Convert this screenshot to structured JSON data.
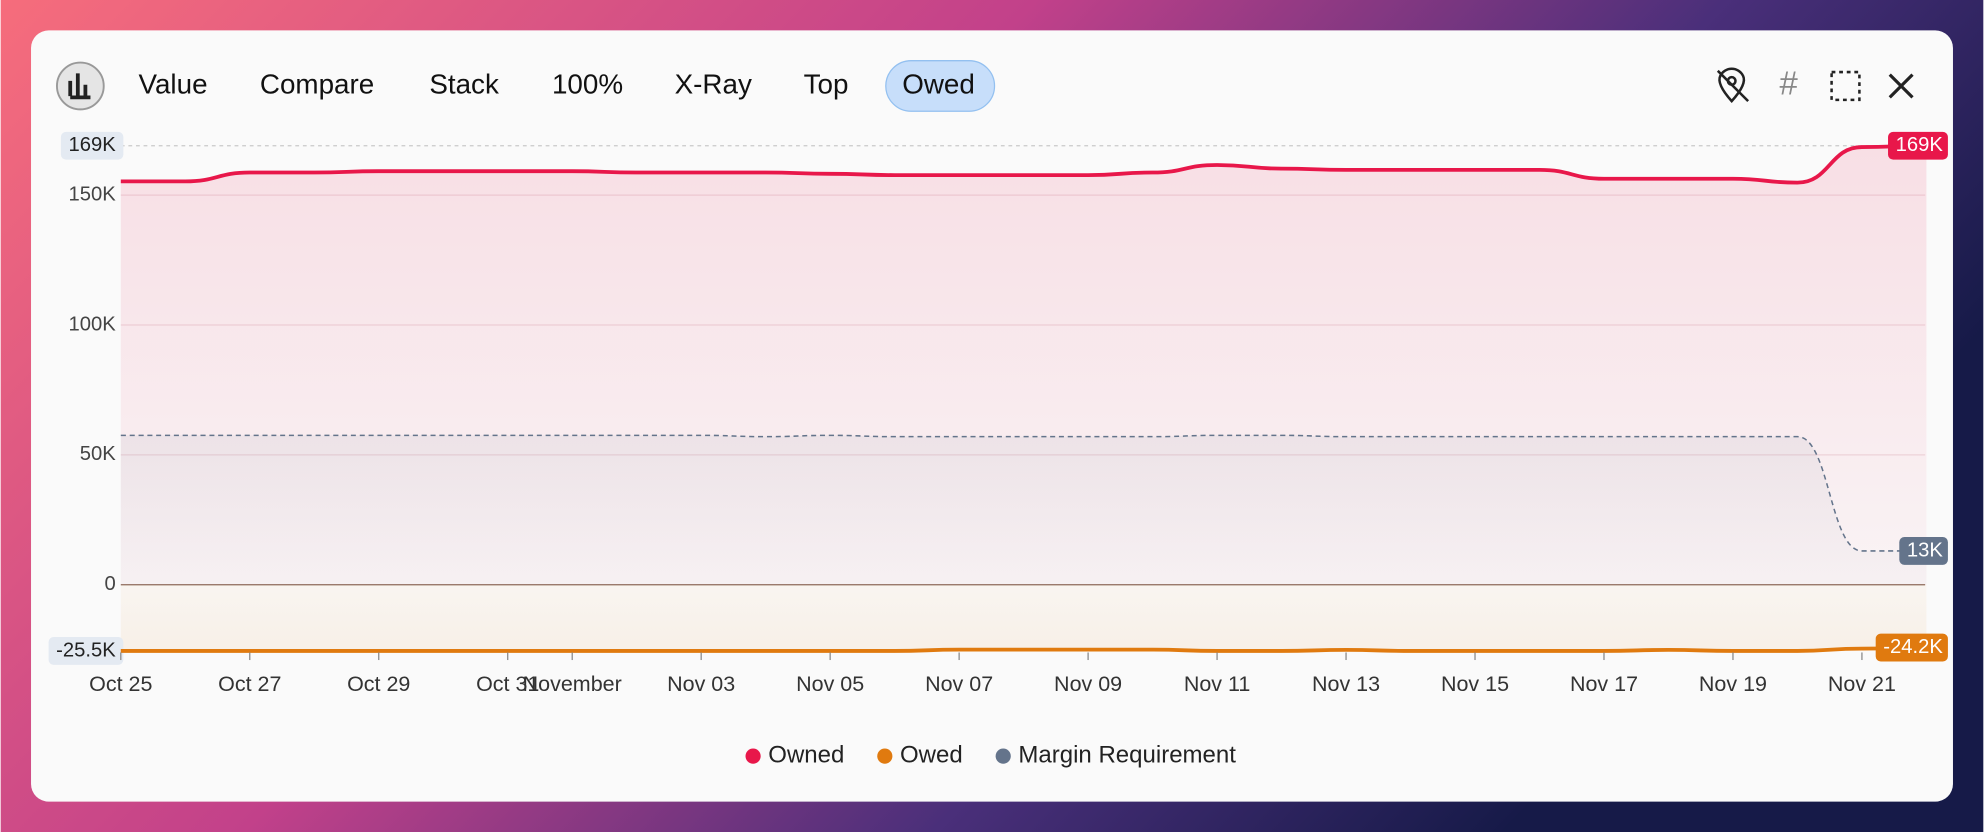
{
  "toolbar": {
    "buttons": [
      "Value",
      "Compare",
      "Stack",
      "100%",
      "X-Ray",
      "Top",
      "Owed"
    ],
    "active": 6
  },
  "chart_data": {
    "type": "line",
    "categories": [
      "Oct 25",
      null,
      "Oct 27",
      null,
      "Oct 29",
      null,
      "Oct 31",
      "November",
      null,
      "Nov 03",
      null,
      "Nov 05",
      null,
      "Nov 07",
      null,
      "Nov 09",
      null,
      "Nov 11",
      null,
      "Nov 13",
      null,
      "Nov 15",
      null,
      "Nov 17",
      null,
      "Nov 19",
      null,
      "Nov 21",
      null
    ],
    "series": [
      {
        "name": "Owned",
        "color": "#e8174a",
        "values": [
          155300,
          155300,
          158700,
          158700,
          159200,
          159200,
          159200,
          159200,
          158700,
          158700,
          158700,
          158200,
          157700,
          157700,
          157700,
          157700,
          158700,
          161600,
          160200,
          159700,
          159700,
          159700,
          159700,
          156300,
          156300,
          156300,
          154800,
          168500,
          169000
        ],
        "value_labels": [
          null,
          null,
          null,
          null,
          null,
          null,
          null,
          null,
          null,
          null,
          null,
          null,
          null,
          null,
          null,
          null,
          null,
          null,
          null,
          null,
          null,
          null,
          null,
          null,
          null,
          null,
          null,
          null,
          "169K"
        ]
      },
      {
        "name": "Owed",
        "color": "#e07a0f",
        "values": [
          -25500,
          -25500,
          -25500,
          -25500,
          -25500,
          -25500,
          -25500,
          -25500,
          -25500,
          -25500,
          -25500,
          -25500,
          -25500,
          -25000,
          -25000,
          -25000,
          -25000,
          -25500,
          -25500,
          -25100,
          -25500,
          -25500,
          -25500,
          -25500,
          -25100,
          -25500,
          -25500,
          -24600,
          -24200
        ],
        "value_labels": [
          null,
          null,
          null,
          null,
          null,
          null,
          null,
          null,
          null,
          null,
          null,
          null,
          null,
          null,
          null,
          null,
          null,
          null,
          null,
          null,
          null,
          null,
          null,
          null,
          null,
          null,
          null,
          null,
          "-24.2K"
        ]
      },
      {
        "name": "Margin Requirement",
        "color": "#64748b",
        "dashed": true,
        "values": [
          57500,
          57500,
          57500,
          57500,
          57500,
          57500,
          57500,
          57500,
          57500,
          57500,
          57000,
          57500,
          57000,
          57000,
          57000,
          57000,
          57000,
          57500,
          57500,
          57000,
          57000,
          57000,
          57000,
          57000,
          57000,
          57000,
          57000,
          13000,
          13000
        ],
        "value_labels": [
          null,
          null,
          null,
          null,
          null,
          null,
          null,
          null,
          null,
          null,
          null,
          null,
          null,
          null,
          null,
          null,
          null,
          null,
          null,
          null,
          null,
          null,
          null,
          null,
          null,
          null,
          null,
          null,
          "13K"
        ]
      }
    ],
    "ylim": [
      -29000,
      174000
    ],
    "yticks": [
      0,
      {
        "value": 50000,
        "label": "50K"
      },
      {
        "value": 100000,
        "label": "100K"
      },
      {
        "value": 150000,
        "label": "150K"
      }
    ],
    "extremes": [
      {
        "value": 169000,
        "label": "169K"
      },
      {
        "value": -25500,
        "label": "-25.5K"
      }
    ],
    "grid": true,
    "legend": "bottom"
  }
}
